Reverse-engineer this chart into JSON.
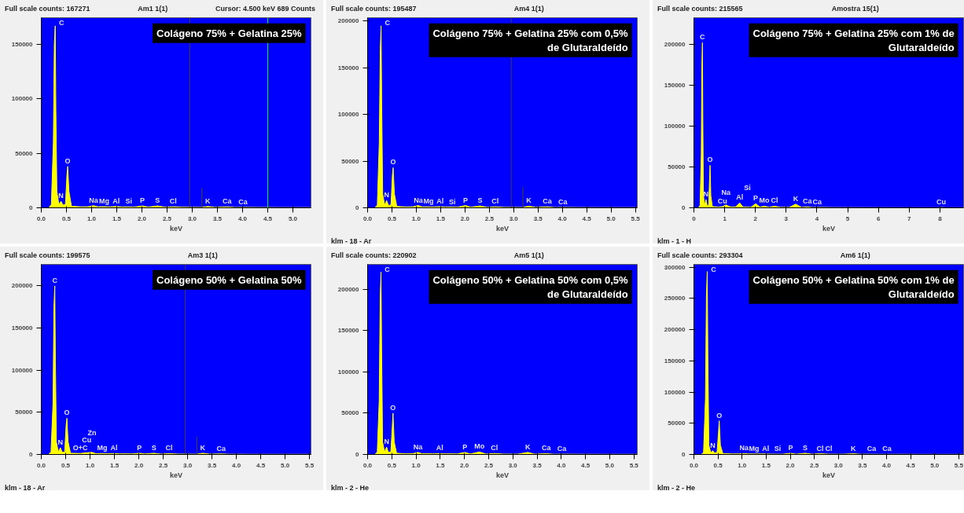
{
  "chart_data": [
    {
      "type": "area",
      "title": "Colágeno 75% + Gelatina 25%",
      "subtitle": "Full scale counts: 167271",
      "xlabel": "keV",
      "xlim": [
        0,
        5.36
      ],
      "ylim": [
        0,
        174500
      ],
      "xticks": [
        {
          "value": 0,
          "label": "0.0"
        },
        0.5,
        {
          "value": 1,
          "label": "1.0"
        },
        1.5,
        {
          "value": 2,
          "label": "2.0"
        },
        2.5,
        {
          "value": 3,
          "label": "3.0"
        },
        3.5,
        {
          "value": 4,
          "label": "4.0"
        },
        4.5,
        {
          "value": 5,
          "label": "5.0"
        }
      ],
      "yticks": [
        0,
        50000,
        100000,
        150000
      ],
      "x": [
        0,
        0.15,
        0.2,
        0.24,
        0.26,
        0.277,
        0.29,
        0.31,
        0.35,
        0.392,
        0.43,
        0.48,
        0.51,
        0.525,
        0.55,
        0.6,
        0.8,
        0.93,
        1.04,
        1.12,
        1.25,
        1.35,
        1.49,
        1.6,
        1.74,
        1.85,
        2.01,
        2.12,
        2.31,
        2.45,
        2.62,
        2.8,
        3.1,
        3.19,
        3.31,
        3.45,
        3.69,
        3.85,
        4.01,
        4.3,
        4.8,
        5.36
      ],
      "series": [
        {
          "color": "#ffff00",
          "values": [
            0,
            0,
            3000,
            60000,
            150000,
            167000,
            90000,
            15000,
            3000,
            6000,
            2500,
            3000,
            30000,
            38000,
            15000,
            1500,
            800,
            900,
            2000,
            900,
            1000,
            800,
            1200,
            700,
            800,
            600,
            1800,
            600,
            1800,
            500,
            900,
            500,
            400,
            400,
            1200,
            400,
            800,
            300,
            400,
            300,
            200,
            200
          ]
        },
        {
          "type": "bar",
          "color": "#404040",
          "values": [
            null,
            null,
            null,
            null,
            null,
            null,
            null,
            null,
            null,
            null,
            null,
            null,
            null,
            null,
            null,
            null,
            null,
            null,
            null,
            null,
            null,
            null,
            null,
            null,
            null,
            null,
            null,
            null,
            null,
            null,
            null,
            null,
            null,
            18000,
            null,
            null,
            null,
            null,
            null,
            null,
            null,
            null
          ]
        }
      ],
      "ref_lines": [
        {
          "axis": "x",
          "value": 2.95,
          "color": "#404040"
        },
        {
          "axis": "x",
          "value": 4.5,
          "color": "#00ff00",
          "label": "Cursor: 4.500 keV 689 Counts"
        }
      ],
      "annotations": [
        "Am1 1(1)",
        {
          "text": "C",
          "x": 0.277,
          "y": 167000
        },
        {
          "text": "N",
          "x": 0.392,
          "y": 6000
        },
        {
          "text": "O",
          "x": 0.525,
          "y": 38000
        },
        {
          "text": "Na",
          "x": 1.04,
          "y": 2000
        },
        {
          "text": "Mg",
          "x": 1.25,
          "y": 1000
        },
        {
          "text": "Al",
          "x": 1.49,
          "y": 1200
        },
        {
          "text": "Si",
          "x": 1.74,
          "y": 800
        },
        {
          "text": "P",
          "x": 2.01,
          "y": 1800
        },
        {
          "text": "S",
          "x": 2.31,
          "y": 1800
        },
        {
          "text": "Cl",
          "x": 2.62,
          "y": 900
        },
        {
          "text": "K",
          "x": 3.31,
          "y": 1200
        },
        {
          "text": "Ca",
          "x": 3.69,
          "y": 800
        },
        {
          "text": "Ca",
          "x": 4.01,
          "y": 400
        }
      ]
    },
    {
      "type": "area",
      "title": "Colágeno 75% + Gelatina 25% com 0,5% de Glutaraldeído",
      "subtitle": "Full scale counts: 195487",
      "xlabel": "keV",
      "xlim": [
        0,
        5.54
      ],
      "ylim": [
        0,
        203700
      ],
      "xticks": [
        {
          "value": 0,
          "label": "0.0"
        },
        0.5,
        {
          "value": 1,
          "label": "1.0"
        },
        1.5,
        {
          "value": 2,
          "label": "2.0"
        },
        2.5,
        {
          "value": 3,
          "label": "3.0"
        },
        3.5,
        {
          "value": 4,
          "label": "4.0"
        },
        4.5,
        {
          "value": 5,
          "label": "5.0"
        },
        5.5
      ],
      "yticks": [
        0,
        50000,
        100000,
        150000,
        200000
      ],
      "x": [
        0,
        0.15,
        0.2,
        0.24,
        0.26,
        0.277,
        0.29,
        0.31,
        0.35,
        0.392,
        0.43,
        0.48,
        0.51,
        0.525,
        0.55,
        0.6,
        0.8,
        0.93,
        1.04,
        1.12,
        1.25,
        1.35,
        1.49,
        1.6,
        1.74,
        1.85,
        2.01,
        2.12,
        2.31,
        2.45,
        2.62,
        2.8,
        3.1,
        3.19,
        3.31,
        3.45,
        3.69,
        3.85,
        4.01,
        4.3,
        4.8,
        5.54
      ],
      "series": [
        {
          "color": "#ffff00",
          "values": [
            0,
            0,
            3000,
            70000,
            170000,
            195000,
            110000,
            15000,
            3000,
            7700,
            2500,
            3000,
            35000,
            43000,
            15000,
            1500,
            800,
            1000,
            2500,
            900,
            1000,
            800,
            1200,
            700,
            800,
            600,
            2500,
            600,
            2000,
            500,
            1000,
            500,
            400,
            400,
            1800,
            400,
            1000,
            300,
            400,
            300,
            200,
            200
          ]
        },
        {
          "type": "bar",
          "color": "#404040",
          "values": [
            null,
            null,
            null,
            null,
            null,
            null,
            null,
            null,
            null,
            null,
            null,
            null,
            null,
            null,
            null,
            null,
            null,
            null,
            null,
            null,
            null,
            null,
            null,
            null,
            null,
            null,
            null,
            null,
            null,
            null,
            null,
            null,
            null,
            22000,
            null,
            null,
            null,
            null,
            null,
            null,
            null,
            null
          ]
        }
      ],
      "ref_lines": [
        {
          "axis": "x",
          "value": 2.95,
          "color": "#404040"
        }
      ],
      "annotations": [
        "Am4 1(1)",
        "klm - 18 - Ar",
        {
          "text": "C",
          "x": 0.277,
          "y": 195000
        },
        {
          "text": "N",
          "x": 0.392,
          "y": 7700
        },
        {
          "text": "O",
          "x": 0.525,
          "y": 43000
        },
        {
          "text": "Na",
          "x": 1.04,
          "y": 2500
        },
        {
          "text": "Mg",
          "x": 1.25,
          "y": 1000
        },
        {
          "text": "Al",
          "x": 1.49,
          "y": 1200
        },
        {
          "text": "Si",
          "x": 1.74,
          "y": 800
        },
        {
          "text": "P",
          "x": 2.01,
          "y": 2500
        },
        {
          "text": "S",
          "x": 2.31,
          "y": 2000
        },
        {
          "text": "Cl",
          "x": 2.62,
          "y": 1000
        },
        {
          "text": "K",
          "x": 3.31,
          "y": 1800
        },
        {
          "text": "Ca",
          "x": 3.69,
          "y": 1000
        },
        {
          "text": "Ca",
          "x": 4.01,
          "y": 400
        }
      ]
    },
    {
      "type": "area",
      "title": "Colágeno 75% + Gelatina 25% com 1% de Glutaraldeído",
      "subtitle": "Full scale counts: 215565",
      "xlabel": "keV",
      "xlim": [
        0,
        8.77
      ],
      "ylim": [
        0,
        232600
      ],
      "xticks": [
        0,
        1,
        2,
        3,
        4,
        5,
        6,
        7,
        8
      ],
      "yticks": [
        0,
        50000,
        100000,
        150000,
        200000
      ],
      "x": [
        0,
        0.15,
        0.2,
        0.24,
        0.26,
        0.277,
        0.29,
        0.31,
        0.35,
        0.392,
        0.43,
        0.48,
        0.51,
        0.525,
        0.55,
        0.6,
        0.8,
        0.93,
        1.04,
        1.2,
        1.35,
        1.49,
        1.6,
        1.74,
        1.85,
        2.01,
        2.15,
        2.29,
        2.45,
        2.62,
        2.8,
        3.1,
        3.31,
        3.5,
        3.69,
        3.85,
        4.01,
        4.5,
        5.5,
        7.0,
        7.9,
        8.04,
        8.2,
        8.77
      ],
      "series": [
        {
          "color": "#ffff00",
          "values": [
            0,
            0,
            3000,
            65000,
            175000,
            202000,
            110000,
            15000,
            3000,
            10000,
            2500,
            3000,
            35000,
            52000,
            15000,
            1500,
            800,
            1500,
            3500,
            900,
            1000,
            6000,
            800,
            800,
            600,
            5000,
            800,
            2000,
            600,
            2000,
            600,
            500,
            4500,
            500,
            1000,
            400,
            500,
            300,
            200,
            100,
            100,
            300,
            100,
            100
          ]
        }
      ],
      "annotations": [
        "Amostra 15(1)",
        "klm - 1 - H",
        {
          "text": "C",
          "x": 0.277,
          "y": 202000
        },
        {
          "text": "N",
          "x": 0.392,
          "y": 10000
        },
        {
          "text": "O",
          "x": 0.525,
          "y": 52000
        },
        {
          "text": "Cu",
          "x": 0.93,
          "y": 1500
        },
        {
          "text": "Na",
          "x": 1.04,
          "y": 3500
        },
        {
          "text": "Al",
          "x": 1.49,
          "y": 6000
        },
        {
          "text": "Si",
          "x": 1.74,
          "y": 800
        },
        {
          "text": "P",
          "x": 2.01,
          "y": 5000
        },
        {
          "text": "Mo",
          "x": 2.29,
          "y": 2000
        },
        {
          "text": "Cl",
          "x": 2.62,
          "y": 2000
        },
        {
          "text": "K",
          "x": 3.31,
          "y": 4500
        },
        {
          "text": "Ca",
          "x": 3.69,
          "y": 1000
        },
        {
          "text": "Ca",
          "x": 4.01,
          "y": 500
        },
        {
          "text": "Cu",
          "x": 8.04,
          "y": 300
        }
      ]
    },
    {
      "type": "area",
      "title": "Colágeno 50% + Gelatina 50%",
      "subtitle": "Full scale counts: 199575",
      "xlabel": "keV",
      "xlim": [
        0,
        5.53
      ],
      "ylim": [
        0,
        225600
      ],
      "xticks": [
        {
          "value": 0,
          "label": "0.0"
        },
        0.5,
        {
          "value": 1,
          "label": "1.0"
        },
        1.5,
        {
          "value": 2,
          "label": "2.0"
        },
        2.5,
        {
          "value": 3,
          "label": "3.0"
        },
        3.5,
        {
          "value": 4,
          "label": "4.0"
        },
        4.5,
        {
          "value": 5,
          "label": "5.0"
        },
        5.5
      ],
      "yticks": [
        0,
        50000,
        100000,
        150000,
        200000
      ],
      "x": [
        0,
        0.15,
        0.2,
        0.24,
        0.26,
        0.277,
        0.29,
        0.31,
        0.35,
        0.392,
        0.43,
        0.48,
        0.51,
        0.525,
        0.55,
        0.6,
        0.8,
        0.93,
        1.04,
        1.12,
        1.25,
        1.35,
        1.49,
        1.6,
        1.74,
        1.85,
        2.01,
        2.12,
        2.31,
        2.45,
        2.62,
        2.8,
        3.1,
        3.19,
        3.31,
        3.45,
        3.69,
        3.85,
        4.01,
        4.3,
        4.8,
        5.53
      ],
      "series": [
        {
          "color": "#ffff00",
          "values": [
            0,
            0,
            3000,
            60000,
            175000,
            200000,
            110000,
            15000,
            3000,
            8000,
            2500,
            3000,
            35000,
            43000,
            15000,
            1500,
            1200,
            2000,
            2500,
            1000,
            1200,
            800,
            1200,
            700,
            800,
            600,
            1500,
            600,
            1500,
            500,
            1000,
            500,
            400,
            400,
            1500,
            400,
            700,
            300,
            300,
            200,
            200,
            200
          ]
        },
        {
          "type": "bar",
          "color": "#404040",
          "values": [
            null,
            null,
            null,
            null,
            null,
            null,
            null,
            null,
            null,
            null,
            null,
            null,
            null,
            null,
            null,
            null,
            null,
            null,
            null,
            null,
            null,
            null,
            null,
            null,
            null,
            null,
            null,
            null,
            null,
            null,
            null,
            null,
            null,
            21000,
            null,
            null,
            null,
            null,
            null,
            null,
            null,
            null
          ]
        }
      ],
      "ref_lines": [
        {
          "axis": "x",
          "value": 2.95,
          "color": "#404040"
        }
      ],
      "annotations": [
        "Am3 1(1)",
        "klm - 18 - Ar",
        {
          "text": "C",
          "x": 0.277,
          "y": 200000
        },
        {
          "text": "N",
          "x": 0.392,
          "y": 8000
        },
        {
          "text": "O",
          "x": 0.525,
          "y": 43000
        },
        {
          "text": "O+C",
          "x": 0.8,
          "y": 1200
        },
        {
          "text": "Cu",
          "x": 0.93,
          "y": 2000
        },
        {
          "text": "Zn",
          "x": 1.04,
          "y": 2500
        },
        {
          "text": "Mg",
          "x": 1.25,
          "y": 1200
        },
        {
          "text": "Al",
          "x": 1.49,
          "y": 1200
        },
        {
          "text": "P",
          "x": 2.01,
          "y": 1500
        },
        {
          "text": "S",
          "x": 2.31,
          "y": 1500
        },
        {
          "text": "Cl",
          "x": 2.62,
          "y": 1000
        },
        {
          "text": "K",
          "x": 3.31,
          "y": 1500
        },
        {
          "text": "Ca",
          "x": 3.69,
          "y": 700
        }
      ]
    },
    {
      "type": "area",
      "title": "Colágeno 50% + Gelatina 50% com 0,5% de Glutaraldeído",
      "subtitle": "Full scale counts: 220902",
      "xlabel": "keV",
      "xlim": [
        0,
        5.57
      ],
      "ylim": [
        0,
        230000
      ],
      "xticks": [
        {
          "value": 0,
          "label": "0.0"
        },
        0.5,
        {
          "value": 1,
          "label": "1.0"
        },
        1.5,
        {
          "value": 2,
          "label": "2.0"
        },
        2.5,
        {
          "value": 3,
          "label": "3.0"
        },
        3.5,
        {
          "value": 4,
          "label": "4.0"
        },
        4.5,
        {
          "value": 5,
          "label": "5.0"
        },
        5.5
      ],
      "yticks": [
        0,
        50000,
        100000,
        150000,
        200000
      ],
      "x": [
        0,
        0.15,
        0.2,
        0.24,
        0.26,
        0.277,
        0.29,
        0.31,
        0.35,
        0.392,
        0.43,
        0.48,
        0.51,
        0.525,
        0.55,
        0.6,
        0.8,
        0.93,
        1.04,
        1.12,
        1.25,
        1.35,
        1.49,
        1.6,
        1.74,
        1.85,
        2.01,
        2.12,
        2.31,
        2.45,
        2.62,
        2.8,
        3.1,
        3.31,
        3.45,
        3.69,
        3.85,
        4.01,
        4.3,
        4.8,
        5.57
      ],
      "series": [
        {
          "color": "#ffff00",
          "values": [
            0,
            0,
            3000,
            65000,
            190000,
            221000,
            125000,
            15000,
            3000,
            9000,
            2500,
            3000,
            33000,
            50000,
            15000,
            1500,
            800,
            1000,
            2500,
            900,
            900,
            800,
            1000,
            700,
            800,
            600,
            2500,
            600,
            3000,
            500,
            1200,
            500,
            400,
            2500,
            400,
            1000,
            300,
            400,
            300,
            200,
            200
          ]
        }
      ],
      "annotations": [
        "Am5 1(1)",
        "klm - 2 - He",
        {
          "text": "C",
          "x": 0.277,
          "y": 221000
        },
        {
          "text": "N",
          "x": 0.392,
          "y": 9000
        },
        {
          "text": "O",
          "x": 0.525,
          "y": 50000
        },
        {
          "text": "Na",
          "x": 1.04,
          "y": 2500
        },
        {
          "text": "Al",
          "x": 1.49,
          "y": 1000
        },
        {
          "text": "P",
          "x": 2.01,
          "y": 2500
        },
        {
          "text": "Mo",
          "x": 2.31,
          "y": 3000
        },
        {
          "text": "Cl",
          "x": 2.62,
          "y": 1200
        },
        {
          "text": "K",
          "x": 3.31,
          "y": 2500
        },
        {
          "text": "Ca",
          "x": 3.69,
          "y": 1000
        },
        {
          "text": "Ca",
          "x": 4.01,
          "y": 400
        }
      ]
    },
    {
      "type": "area",
      "title": "Colágeno 50% + Gelatina 50% com 1% de Glutaraldeído",
      "subtitle": "Full scale counts: 293304",
      "xlabel": "keV",
      "xlim": [
        0,
        5.6
      ],
      "ylim": [
        0,
        304500
      ],
      "xticks": [
        {
          "value": 0,
          "label": "0.0"
        },
        0.5,
        {
          "value": 1,
          "label": "1.0"
        },
        1.5,
        {
          "value": 2,
          "label": "2.0"
        },
        2.5,
        {
          "value": 3,
          "label": "3.0"
        },
        3.5,
        {
          "value": 4,
          "label": "4.0"
        },
        4.5,
        {
          "value": 5,
          "label": "5.0"
        },
        5.5
      ],
      "yticks": [
        0,
        50000,
        100000,
        150000,
        200000,
        250000,
        300000
      ],
      "x": [
        0,
        0.15,
        0.2,
        0.24,
        0.26,
        0.277,
        0.29,
        0.31,
        0.35,
        0.392,
        0.43,
        0.48,
        0.51,
        0.525,
        0.55,
        0.6,
        0.8,
        0.93,
        1.04,
        1.12,
        1.25,
        1.35,
        1.49,
        1.6,
        1.74,
        1.85,
        2.01,
        2.12,
        2.31,
        2.45,
        2.62,
        2.8,
        3.1,
        3.31,
        3.45,
        3.69,
        3.85,
        4.01,
        4.3,
        4.8,
        5.6
      ],
      "series": [
        {
          "color": "#ffff00",
          "values": [
            0,
            0,
            3000,
            90000,
            255000,
            293000,
            160000,
            15000,
            3000,
            6000,
            2500,
            3000,
            35000,
            54000,
            15000,
            1500,
            800,
            900,
            1500,
            900,
            800,
            800,
            800,
            600,
            500,
            500,
            2000,
            500,
            2000,
            500,
            1200,
            500,
            400,
            1200,
            400,
            400,
            300,
            300,
            300,
            200,
            200
          ]
        }
      ],
      "annotations": [
        "Am6 1(1)",
        "klm - 2 - He",
        {
          "text": "C",
          "x": 0.277,
          "y": 293000
        },
        {
          "text": "N",
          "x": 0.392,
          "y": 6000
        },
        {
          "text": "O",
          "x": 0.525,
          "y": 54000
        },
        {
          "text": "Na",
          "x": 1.04,
          "y": 1500
        },
        {
          "text": "Mg",
          "x": 1.25,
          "y": 800
        },
        {
          "text": "Al",
          "x": 1.49,
          "y": 800
        },
        {
          "text": "Si",
          "x": 1.74,
          "y": 500
        },
        {
          "text": "P",
          "x": 2.01,
          "y": 2000
        },
        {
          "text": "S",
          "x": 2.31,
          "y": 2000
        },
        {
          "text": "Cl",
          "x": 2.62,
          "y": 1200
        },
        {
          "text": "Cl",
          "x": 2.8,
          "y": 500
        },
        {
          "text": "K",
          "x": 3.31,
          "y": 1200
        },
        {
          "text": "Ca",
          "x": 3.69,
          "y": 400
        },
        {
          "text": "Ca",
          "x": 4.01,
          "y": 300
        }
      ]
    }
  ]
}
